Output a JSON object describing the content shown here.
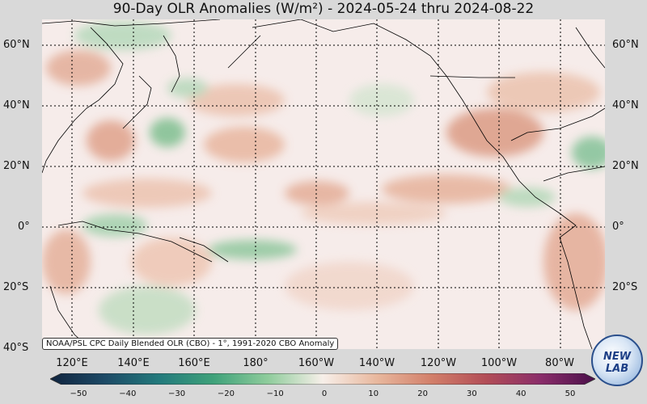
{
  "title": "90-Day OLR Anomalies (W/m²) - 2024-05-24 thru 2024-08-22",
  "lat_labels": [
    "60°N",
    "40°N",
    "20°N",
    "0°",
    "20°S",
    "40°S"
  ],
  "lon_labels": [
    "120°E",
    "140°E",
    "160°E",
    "180°",
    "160°W",
    "140°W",
    "120°W",
    "100°W",
    "80°W"
  ],
  "source_note": "NOAA/PSL CPC Daily Blended OLR (CBO) - 1°, 1991-2020 CBO Anomaly",
  "colorbar": {
    "ticks": [
      "−50",
      "−40",
      "−30",
      "−20",
      "−10",
      "0",
      "10",
      "20",
      "30",
      "40",
      "50"
    ],
    "range": [
      -50,
      50
    ],
    "colors": [
      "#10243f",
      "#1d4a66",
      "#237a7c",
      "#3fa27a",
      "#8fcc9c",
      "#f7efe9",
      "#e8b79d",
      "#d27f6a",
      "#b24d57",
      "#8a2d6a",
      "#4a0f4a"
    ]
  },
  "logo_text": "NEW LAB"
}
